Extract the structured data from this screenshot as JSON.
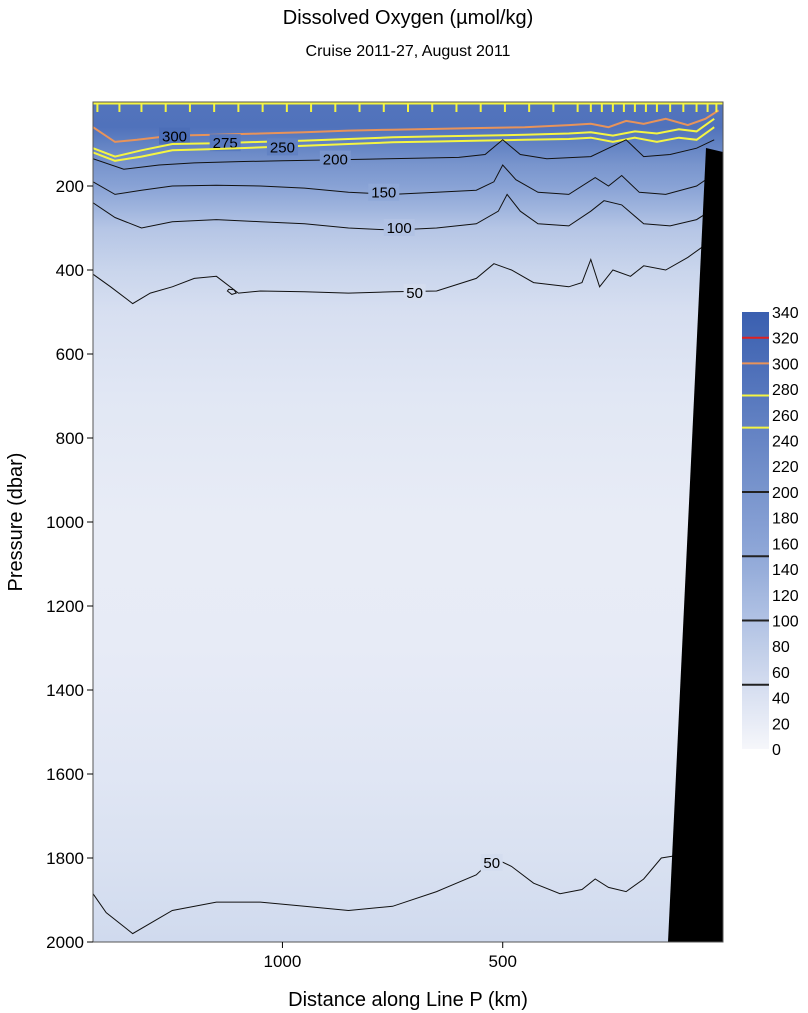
{
  "chart_data": {
    "type": "heatmap",
    "title": "Dissolved Oxygen  (µmol/kg)",
    "subtitle": "Cruise 2011-27,  August 2011",
    "xlabel": "Distance along Line P  (km)",
    "ylabel": "Pressure  (dbar)",
    "x_reversed": true,
    "xlim": [
      1430,
      0
    ],
    "ylim": [
      2000,
      0
    ],
    "x_ticks": [
      "1000",
      "500"
    ],
    "x_tick_values": [
      1000,
      500
    ],
    "y_ticks": [
      "200",
      "400",
      "600",
      "800",
      "1000",
      "1200",
      "1400",
      "1600",
      "1800",
      "2000"
    ],
    "y_tick_values": [
      200,
      400,
      600,
      800,
      1000,
      1200,
      1400,
      1600,
      1800,
      2000
    ],
    "colorbar": {
      "min": 0,
      "max": 340,
      "labels": [
        "340",
        "320",
        "300",
        "280",
        "260",
        "240",
        "220",
        "200",
        "180",
        "160",
        "140",
        "120",
        "100",
        "80",
        "60",
        "40",
        "20",
        "0"
      ],
      "label_values": [
        340,
        320,
        300,
        280,
        260,
        240,
        220,
        200,
        180,
        160,
        140,
        120,
        100,
        80,
        60,
        40,
        20,
        0
      ],
      "line_markers": [
        {
          "value": 320,
          "color": "#e02020"
        },
        {
          "value": 300,
          "color": "#e8935a"
        },
        {
          "value": 275,
          "color": "#f5f542"
        },
        {
          "value": 250,
          "color": "#f5f542"
        },
        {
          "value": 200,
          "color": "#222222"
        },
        {
          "value": 150,
          "color": "#222222"
        },
        {
          "value": 100,
          "color": "#222222"
        },
        {
          "value": 50,
          "color": "#222222"
        }
      ]
    },
    "colors": {
      "high": "#3a5fb0",
      "mid": "#8fa8d8",
      "low": "#f6f7fb",
      "contour_black": "#111111",
      "contour_yellow": "#f5f542",
      "contour_orange": "#e8935a",
      "contour_red": "#e02020",
      "bottom_topography": "#000000"
    },
    "profile": [
      {
        "pressure": 0,
        "oxygen": 285
      },
      {
        "pressure": 60,
        "oxygen": 290
      },
      {
        "pressure": 100,
        "oxygen": 250
      },
      {
        "pressure": 150,
        "oxygen": 200
      },
      {
        "pressure": 200,
        "oxygen": 165
      },
      {
        "pressure": 250,
        "oxygen": 130
      },
      {
        "pressure": 300,
        "oxygen": 95
      },
      {
        "pressure": 400,
        "oxygen": 65
      },
      {
        "pressure": 500,
        "oxygen": 45
      },
      {
        "pressure": 700,
        "oxygen": 30
      },
      {
        "pressure": 1000,
        "oxygen": 20
      },
      {
        "pressure": 1300,
        "oxygen": 22
      },
      {
        "pressure": 1600,
        "oxygen": 32
      },
      {
        "pressure": 1800,
        "oxygen": 42
      },
      {
        "pressure": 2000,
        "oxygen": 55
      }
    ],
    "contours": [
      {
        "level": 300,
        "label": "300",
        "color": "orange",
        "points": [
          [
            1430,
            60
          ],
          [
            1380,
            95
          ],
          [
            1330,
            90
          ],
          [
            1250,
            80
          ],
          [
            1150,
            78
          ],
          [
            1050,
            75
          ],
          [
            950,
            72
          ],
          [
            850,
            68
          ],
          [
            750,
            66
          ],
          [
            650,
            64
          ],
          [
            550,
            62
          ],
          [
            450,
            60
          ],
          [
            350,
            55
          ],
          [
            300,
            52
          ],
          [
            260,
            60
          ],
          [
            220,
            45
          ],
          [
            180,
            52
          ],
          [
            130,
            40
          ],
          [
            80,
            55
          ],
          [
            40,
            40
          ],
          [
            10,
            20
          ]
        ],
        "label_at": [
          1245,
          82
        ]
      },
      {
        "level": 275,
        "label": "275",
        "color": "yellow",
        "points": [
          [
            1430,
            110
          ],
          [
            1380,
            130
          ],
          [
            1320,
            115
          ],
          [
            1250,
            100
          ],
          [
            1150,
            98
          ],
          [
            1050,
            95
          ],
          [
            950,
            92
          ],
          [
            850,
            88
          ],
          [
            750,
            84
          ],
          [
            650,
            82
          ],
          [
            550,
            80
          ],
          [
            450,
            78
          ],
          [
            350,
            75
          ],
          [
            300,
            72
          ],
          [
            250,
            80
          ],
          [
            200,
            70
          ],
          [
            150,
            75
          ],
          [
            100,
            65
          ],
          [
            60,
            70
          ],
          [
            20,
            40
          ]
        ],
        "label_at": [
          1130,
          98
        ]
      },
      {
        "level": 250,
        "label": "250",
        "color": "yellow",
        "points": [
          [
            1430,
            120
          ],
          [
            1380,
            140
          ],
          [
            1320,
            130
          ],
          [
            1250,
            115
          ],
          [
            1150,
            112
          ],
          [
            1050,
            108
          ],
          [
            950,
            104
          ],
          [
            850,
            100
          ],
          [
            750,
            96
          ],
          [
            650,
            94
          ],
          [
            550,
            92
          ],
          [
            450,
            90
          ],
          [
            350,
            88
          ],
          [
            300,
            85
          ],
          [
            250,
            95
          ],
          [
            200,
            85
          ],
          [
            150,
            95
          ],
          [
            100,
            85
          ],
          [
            60,
            90
          ],
          [
            20,
            60
          ]
        ],
        "label_at": [
          1000,
          108
        ]
      },
      {
        "level": 200,
        "label": "200",
        "color": "black",
        "points": [
          [
            1430,
            135
          ],
          [
            1360,
            160
          ],
          [
            1280,
            150
          ],
          [
            1200,
            145
          ],
          [
            1100,
            142
          ],
          [
            1000,
            140
          ],
          [
            900,
            138
          ],
          [
            800,
            136
          ],
          [
            700,
            134
          ],
          [
            600,
            132
          ],
          [
            540,
            125
          ],
          [
            500,
            90
          ],
          [
            460,
            125
          ],
          [
            400,
            135
          ],
          [
            300,
            130
          ],
          [
            260,
            110
          ],
          [
            220,
            90
          ],
          [
            180,
            130
          ],
          [
            120,
            125
          ],
          [
            60,
            110
          ],
          [
            20,
            90
          ]
        ],
        "label_at": [
          880,
          137
        ]
      },
      {
        "level": 150,
        "label": "150",
        "color": "black",
        "points": [
          [
            1430,
            190
          ],
          [
            1380,
            220
          ],
          [
            1320,
            210
          ],
          [
            1250,
            200
          ],
          [
            1150,
            198
          ],
          [
            1050,
            200
          ],
          [
            950,
            205
          ],
          [
            850,
            215
          ],
          [
            750,
            220
          ],
          [
            650,
            215
          ],
          [
            560,
            210
          ],
          [
            520,
            190
          ],
          [
            500,
            150
          ],
          [
            470,
            185
          ],
          [
            420,
            215
          ],
          [
            350,
            220
          ],
          [
            290,
            180
          ],
          [
            260,
            200
          ],
          [
            230,
            175
          ],
          [
            190,
            215
          ],
          [
            130,
            220
          ],
          [
            60,
            200
          ],
          [
            25,
            175
          ]
        ],
        "label_at": [
          770,
          216
        ]
      },
      {
        "level": 100,
        "label": "100",
        "color": "black",
        "points": [
          [
            1430,
            240
          ],
          [
            1380,
            275
          ],
          [
            1320,
            300
          ],
          [
            1250,
            285
          ],
          [
            1150,
            280
          ],
          [
            1050,
            285
          ],
          [
            950,
            290
          ],
          [
            850,
            300
          ],
          [
            750,
            305
          ],
          [
            650,
            300
          ],
          [
            560,
            290
          ],
          [
            510,
            260
          ],
          [
            490,
            220
          ],
          [
            460,
            260
          ],
          [
            420,
            290
          ],
          [
            350,
            295
          ],
          [
            300,
            260
          ],
          [
            270,
            235
          ],
          [
            230,
            245
          ],
          [
            180,
            290
          ],
          [
            120,
            295
          ],
          [
            60,
            280
          ],
          [
            30,
            260
          ]
        ],
        "label_at": [
          735,
          300
        ]
      },
      {
        "level": 50,
        "label": "50",
        "color": "black",
        "points": [
          [
            1430,
            410
          ],
          [
            1390,
            440
          ],
          [
            1340,
            480
          ],
          [
            1300,
            455
          ],
          [
            1250,
            440
          ],
          [
            1200,
            420
          ],
          [
            1150,
            415
          ],
          [
            1100,
            455
          ],
          [
            1050,
            450
          ],
          [
            950,
            452
          ],
          [
            850,
            455
          ],
          [
            750,
            452
          ],
          [
            650,
            450
          ],
          [
            560,
            420
          ],
          [
            520,
            385
          ],
          [
            480,
            400
          ],
          [
            430,
            430
          ],
          [
            350,
            440
          ],
          [
            320,
            430
          ],
          [
            300,
            375
          ],
          [
            280,
            440
          ],
          [
            250,
            400
          ],
          [
            210,
            415
          ],
          [
            180,
            390
          ],
          [
            130,
            400
          ],
          [
            80,
            370
          ],
          [
            40,
            340
          ]
        ],
        "label_at": [
          700,
          455
        ]
      },
      {
        "level": 50,
        "label": "50",
        "color": "black",
        "points": [
          [
            1430,
            1885
          ],
          [
            1400,
            1930
          ],
          [
            1340,
            1980
          ],
          [
            1250,
            1925
          ],
          [
            1150,
            1905
          ],
          [
            1050,
            1905
          ],
          [
            950,
            1915
          ],
          [
            850,
            1925
          ],
          [
            750,
            1915
          ],
          [
            650,
            1880
          ],
          [
            560,
            1840
          ],
          [
            520,
            1800
          ],
          [
            480,
            1820
          ],
          [
            430,
            1860
          ],
          [
            370,
            1885
          ],
          [
            320,
            1875
          ],
          [
            290,
            1850
          ],
          [
            260,
            1870
          ],
          [
            220,
            1880
          ],
          [
            180,
            1850
          ],
          [
            140,
            1800
          ],
          [
            110,
            1795
          ]
        ],
        "label_at": [
          525,
          1812
        ]
      },
      {
        "level": 50,
        "label": "",
        "color": "black",
        "closed": true,
        "points": [
          [
            1125,
            450
          ],
          [
            1115,
            458
          ],
          [
            1105,
            455
          ],
          [
            1110,
            447
          ],
          [
            1122,
            446
          ]
        ],
        "label_at": null
      }
    ],
    "station_ticks": [
      1420,
      1370,
      1320,
      1265,
      1210,
      1155,
      1100,
      1045,
      990,
      935,
      880,
      825,
      770,
      715,
      660,
      605,
      550,
      495,
      440,
      385,
      330,
      300,
      275,
      250,
      225,
      200,
      175,
      150,
      120,
      90,
      60,
      35,
      15
    ]
  }
}
